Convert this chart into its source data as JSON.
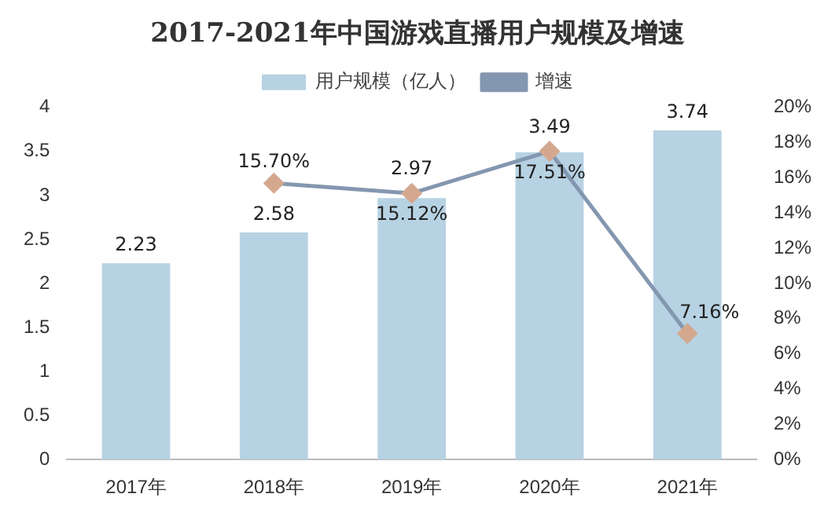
{
  "chart_data": {
    "type": "bar",
    "title": "2017-2021年中国游戏直播用户规模及增速",
    "categories": [
      "2017年",
      "2018年",
      "2019年",
      "2020年",
      "2021年"
    ],
    "series": [
      {
        "name": "用户规模（亿人）",
        "color": "#b7d2e3",
        "values": [
          2.23,
          2.58,
          2.97,
          3.49,
          3.74
        ],
        "value_labels": [
          "2.23",
          "2.58",
          "2.97",
          "3.49",
          "3.74"
        ]
      },
      {
        "name": "增速",
        "type": "line",
        "axis": "y2",
        "color": "#8497b0",
        "marker": "diamond",
        "values": [
          null,
          15.7,
          15.12,
          17.51,
          7.16
        ],
        "value_labels": [
          null,
          "15.70%",
          "15.12%",
          "17.51%",
          "7.16%"
        ]
      }
    ],
    "ylim": [
      0,
      4
    ],
    "yticks": [
      0,
      0.5,
      1,
      1.5,
      2,
      2.5,
      3,
      3.5,
      4
    ],
    "y2lim": [
      0,
      20
    ],
    "y2ticks": [
      {
        "value": 0,
        "label": "0%"
      },
      {
        "value": 2,
        "label": "2%"
      },
      {
        "value": 4,
        "label": "4%"
      },
      {
        "value": 6,
        "label": "6%"
      },
      {
        "value": 8,
        "label": "8%"
      },
      {
        "value": 10,
        "label": "10%"
      },
      {
        "value": 12,
        "label": "12%"
      },
      {
        "value": 14,
        "label": "14%"
      },
      {
        "value": 16,
        "label": "16%"
      },
      {
        "value": 18,
        "label": "18%"
      },
      {
        "value": 20,
        "label": "20%"
      }
    ],
    "grid": false,
    "legend": "top"
  }
}
